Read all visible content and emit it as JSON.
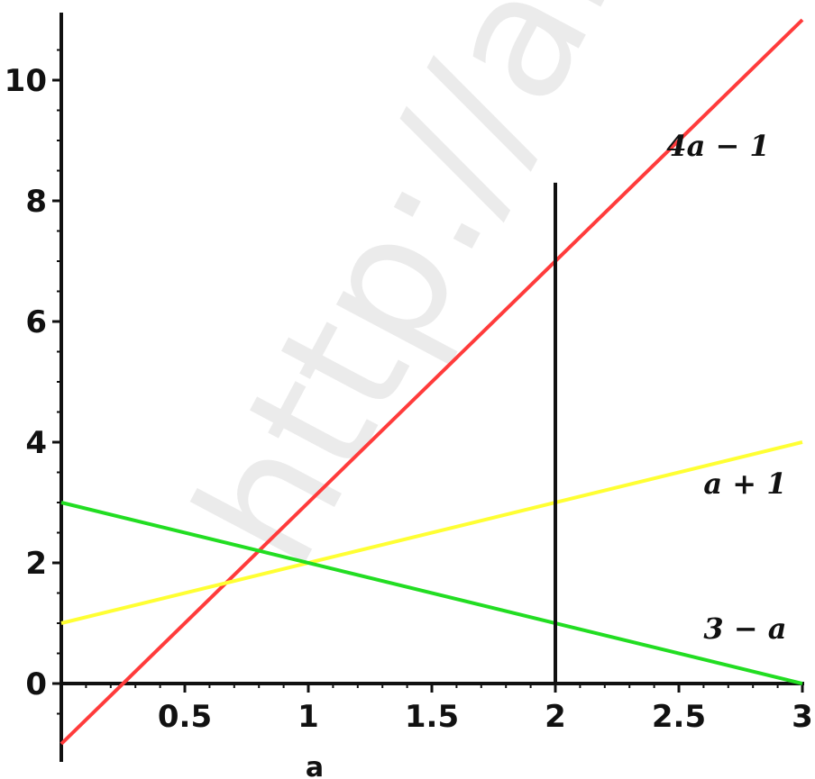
{
  "watermark": "http://alc",
  "chart_data": {
    "type": "line",
    "xlabel": "a",
    "ylabel": "",
    "xlim": [
      0,
      3
    ],
    "ylim": [
      -1,
      11
    ],
    "x_ticks": [
      0.5,
      1,
      1.5,
      2,
      2.5,
      3
    ],
    "x_tick_labels": [
      "0.5",
      "1",
      "1.5",
      "2",
      "2.5",
      "3"
    ],
    "y_ticks": [
      0,
      2,
      4,
      6,
      8,
      10
    ],
    "y_tick_labels": [
      "0",
      "2",
      "4",
      "6",
      "8",
      "10"
    ],
    "grid": false,
    "series": [
      {
        "name": "4a − 1",
        "color": "#ff3b3b",
        "x": [
          0,
          3
        ],
        "y": [
          -1,
          11
        ]
      },
      {
        "name": "a + 1",
        "color": "#ffff33",
        "x": [
          0,
          3
        ],
        "y": [
          1,
          4
        ]
      },
      {
        "name": "3 − a",
        "color": "#22dd22",
        "x": [
          0,
          3
        ],
        "y": [
          3,
          0
        ]
      }
    ],
    "vertical_line": {
      "x": 2,
      "y_top": 8.3,
      "color": "#111111"
    }
  }
}
